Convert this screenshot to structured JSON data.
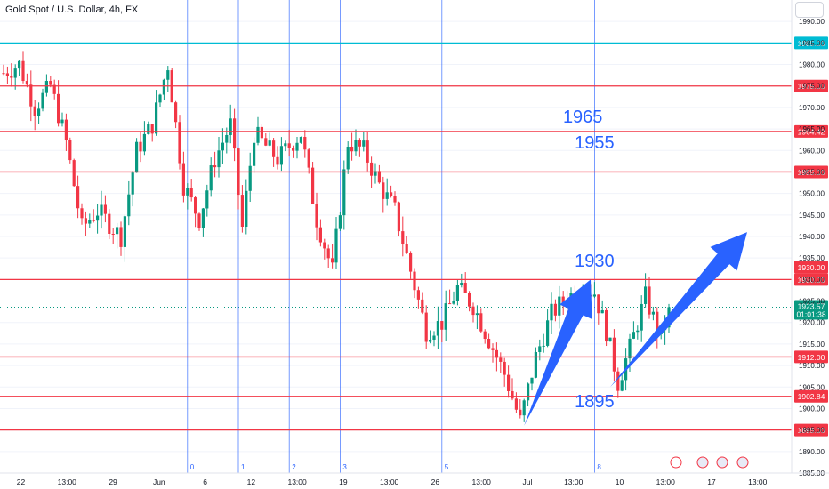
{
  "header": {
    "symbol_title": "Gold Spot / U.S. Dollar, 4h, FX"
  },
  "colors": {
    "up": "#089981",
    "down": "#f23645",
    "level_line": "#f23645",
    "top_line": "#00bcd4",
    "vline": "#2962ff",
    "arrow": "#2962ff",
    "price_tag": "#089981",
    "cyan_tag": "#00bcd4"
  },
  "chart_data": {
    "type": "candlestick",
    "title": "Gold Spot / U.S. Dollar, 4h, FX",
    "ylim": [
      1885,
      1995
    ],
    "y_ticks": [
      1885,
      1890,
      1895,
      1900,
      1905,
      1910,
      1915,
      1920,
      1925,
      1930,
      1935,
      1940,
      1945,
      1950,
      1955,
      1960,
      1965,
      1970,
      1975,
      1980,
      1985,
      1990
    ],
    "x_ticks": [
      "22",
      "13:00",
      "29",
      "Jun",
      "6",
      "12",
      "13:00",
      "19",
      "13:00",
      "26",
      "13:00",
      "Jul",
      "13:00",
      "10",
      "13:00",
      "17",
      "13:00"
    ],
    "n_bars": 200,
    "horizontal_levels": [
      {
        "price": 1985.0,
        "label": "1985.00",
        "color": "#00bcd4"
      },
      {
        "price": 1975.0,
        "label": "1975.00",
        "color": "#f23645"
      },
      {
        "price": 1964.42,
        "label": "1964.42",
        "color": "#f23645"
      },
      {
        "price": 1955.0,
        "label": "1955.00",
        "color": "#f23645"
      },
      {
        "price": 1930.0,
        "label": "1930.00",
        "color": "#f23645"
      },
      {
        "price": 1912.0,
        "label": "1912.00",
        "color": "#f23645"
      },
      {
        "price": 1902.84,
        "label": "1902.84",
        "color": "#f23645"
      },
      {
        "price": 1895.0,
        "label": "1895.00",
        "color": "#f23645"
      }
    ],
    "extra_tags": [
      {
        "label": "1930.00",
        "color": "#f23645"
      }
    ],
    "current_price": {
      "label": "1923.57",
      "timer": "01:01:38"
    },
    "session_lines": [
      {
        "bar": 47,
        "label": "0"
      },
      {
        "bar": 60,
        "label": "1"
      },
      {
        "bar": 73,
        "label": "2"
      },
      {
        "bar": 86,
        "label": "3"
      },
      {
        "bar": 112,
        "label": "5"
      },
      {
        "bar": 151,
        "label": "8"
      }
    ],
    "annotations": [
      {
        "text": "1965",
        "price": 1966.5,
        "bar": 148
      },
      {
        "text": "1955",
        "price": 1960.5,
        "bar": 151
      },
      {
        "text": "1930",
        "price": 1933.0,
        "bar": 151
      },
      {
        "text": "1895",
        "price": 1900.3,
        "bar": 151
      }
    ],
    "arrows": [
      {
        "from": [
          133,
          1896
        ],
        "to": [
          150,
          1930
        ]
      },
      {
        "from": [
          155,
          1905
        ],
        "to": [
          190,
          1941
        ]
      }
    ],
    "waypoints": [
      [
        0,
        1978
      ],
      [
        4,
        1980
      ],
      [
        8,
        1970
      ],
      [
        12,
        1975
      ],
      [
        16,
        1962
      ],
      [
        20,
        1942
      ],
      [
        24,
        1946
      ],
      [
        30,
        1940
      ],
      [
        34,
        1960
      ],
      [
        38,
        1966
      ],
      [
        42,
        1980
      ],
      [
        46,
        1952
      ],
      [
        50,
        1944
      ],
      [
        54,
        1958
      ],
      [
        58,
        1966
      ],
      [
        61,
        1942
      ],
      [
        64,
        1964
      ],
      [
        70,
        1958
      ],
      [
        76,
        1964
      ],
      [
        80,
        1944
      ],
      [
        84,
        1932
      ],
      [
        88,
        1962
      ],
      [
        92,
        1960
      ],
      [
        96,
        1952
      ],
      [
        100,
        1946
      ],
      [
        104,
        1932
      ],
      [
        108,
        1918
      ],
      [
        112,
        1920
      ],
      [
        116,
        1928
      ],
      [
        120,
        1924
      ],
      [
        124,
        1916
      ],
      [
        128,
        1908
      ],
      [
        132,
        1897
      ],
      [
        136,
        1912
      ],
      [
        140,
        1922
      ],
      [
        144,
        1926
      ],
      [
        148,
        1928
      ],
      [
        151,
        1927
      ],
      [
        154,
        1918
      ],
      [
        157,
        1906
      ],
      [
        160,
        1914
      ],
      [
        164,
        1926
      ],
      [
        168,
        1916
      ],
      [
        170,
        1923.57
      ]
    ]
  }
}
